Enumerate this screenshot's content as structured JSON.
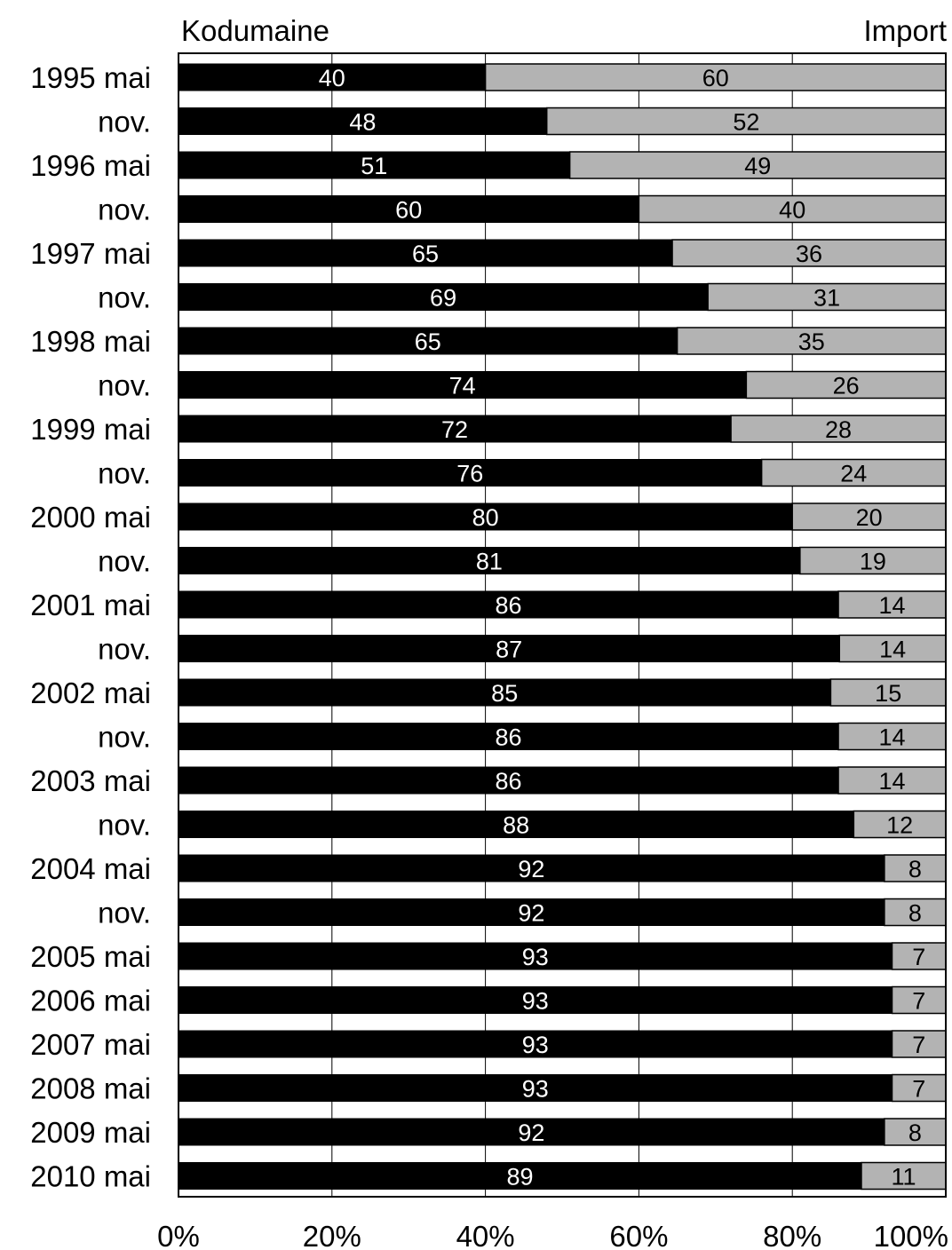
{
  "chart_data": {
    "type": "bar",
    "orientation": "horizontal",
    "stacked": true,
    "percent_stacked": true,
    "legend": {
      "left_label": "Kodumaine",
      "right_label": "Import"
    },
    "categories": [
      "1995 mai",
      "nov.",
      "1996 mai",
      "nov.",
      "1997 mai",
      "nov.",
      "1998 mai",
      "nov.",
      "1999 mai",
      "nov.",
      "2000 mai",
      "nov.",
      "2001 mai",
      "nov.",
      "2002 mai",
      "nov.",
      "2003 mai",
      "nov.",
      "2004 mai",
      "nov.",
      "2005 mai",
      "2006 mai",
      "2007 mai",
      "2008 mai",
      "2009 mai",
      "2010 mai"
    ],
    "series": [
      {
        "name": "Kodumaine",
        "color": "#000000",
        "label_color": "#ffffff",
        "values": [
          40,
          48,
          51,
          60,
          65,
          69,
          65,
          74,
          72,
          76,
          80,
          81,
          86,
          87,
          85,
          86,
          86,
          88,
          92,
          92,
          93,
          93,
          93,
          93,
          92,
          89
        ]
      },
      {
        "name": "Import",
        "color": "#b3b3b3",
        "label_color": "#000000",
        "values": [
          60,
          52,
          49,
          40,
          36,
          31,
          35,
          26,
          28,
          24,
          20,
          19,
          14,
          14,
          15,
          14,
          14,
          12,
          8,
          8,
          7,
          7,
          7,
          7,
          8,
          11
        ]
      }
    ],
    "x_ticks": [
      "0%",
      "20%",
      "40%",
      "60%",
      "80%",
      "100%"
    ],
    "xlim": [
      0,
      100
    ],
    "grid": "vertical"
  }
}
